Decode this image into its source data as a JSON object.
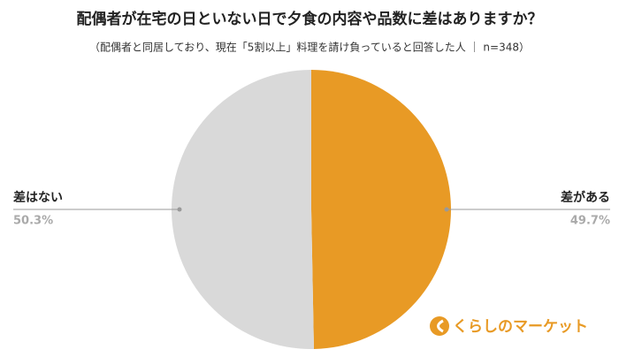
{
  "chart_data": {
    "type": "pie",
    "title": "配偶者が在宅の日といない日で夕食の内容や品数に差はありますか？",
    "subtitle": "（配偶者と同居しており、現在「5割以上」料理を請け負っていると回答した人 ｜ n=348）",
    "categories": [
      "差がある",
      "差はない"
    ],
    "values": [
      49.7,
      50.3
    ],
    "value_labels": [
      "49.7%",
      "50.3%"
    ],
    "colors": [
      "#e89a25",
      "#d9d9d9"
    ]
  },
  "brand": "くらしのマーケット"
}
